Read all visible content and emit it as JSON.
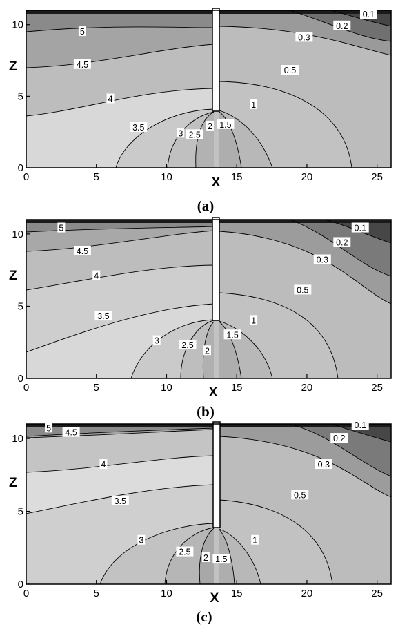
{
  "chart_data": [
    {
      "type": "contour",
      "caption": "(a)",
      "xlabel": "X",
      "ylabel": "Z",
      "xlim": [
        0,
        26
      ],
      "ylim": [
        0,
        11
      ],
      "xticks": [
        "0",
        "5",
        "10",
        "15",
        "20",
        "25"
      ],
      "yticks": [
        "0",
        "5",
        "10"
      ],
      "pipe": {
        "x": 13,
        "z_bottom": 4,
        "z_top": 11
      },
      "contour_labels": [
        {
          "text": "5",
          "x": 4,
          "z": 9.5
        },
        {
          "text": "4.5",
          "x": 4,
          "z": 7.2
        },
        {
          "text": "4",
          "x": 6,
          "z": 4.8
        },
        {
          "text": "3.5",
          "x": 8,
          "z": 2.8
        },
        {
          "text": "3",
          "x": 11,
          "z": 2.4
        },
        {
          "text": "2.5",
          "x": 12,
          "z": 2.3
        },
        {
          "text": "2",
          "x": 13.1,
          "z": 2.9
        },
        {
          "text": "1.5",
          "x": 14.2,
          "z": 3.0
        },
        {
          "text": "1",
          "x": 16.2,
          "z": 4.4
        },
        {
          "text": "0.5",
          "x": 18.8,
          "z": 6.8
        },
        {
          "text": "0.3",
          "x": 19.8,
          "z": 9.1
        },
        {
          "text": "0.2",
          "x": 22.5,
          "z": 9.9
        },
        {
          "text": "0.1",
          "x": 24.4,
          "z": 10.7
        }
      ]
    },
    {
      "type": "contour",
      "caption": "(b)",
      "xlabel": "X",
      "ylabel": "Z",
      "xlim": [
        0,
        26
      ],
      "ylim": [
        0,
        11
      ],
      "xticks": [
        "0",
        "5",
        "10",
        "15",
        "20",
        "25"
      ],
      "yticks": [
        "0",
        "5",
        "10"
      ],
      "pipe": {
        "x": 13,
        "z_bottom": 4,
        "z_top": 11
      },
      "contour_labels": [
        {
          "text": "5",
          "x": 2.5,
          "z": 10.4
        },
        {
          "text": "4.5",
          "x": 4,
          "z": 8.8
        },
        {
          "text": "4",
          "x": 5,
          "z": 7.1
        },
        {
          "text": "3.5",
          "x": 5.5,
          "z": 4.3
        },
        {
          "text": "3",
          "x": 9.3,
          "z": 2.6
        },
        {
          "text": "2.5",
          "x": 11.5,
          "z": 2.3
        },
        {
          "text": "2",
          "x": 12.9,
          "z": 1.9
        },
        {
          "text": "1.5",
          "x": 14.7,
          "z": 3.0
        },
        {
          "text": "1",
          "x": 16.2,
          "z": 4.0
        },
        {
          "text": "0.5",
          "x": 19.7,
          "z": 6.1
        },
        {
          "text": "0.3",
          "x": 21.1,
          "z": 8.2
        },
        {
          "text": "0.2",
          "x": 22.5,
          "z": 9.4
        },
        {
          "text": "0.1",
          "x": 23.8,
          "z": 10.4
        }
      ]
    },
    {
      "type": "contour",
      "caption": "(c)",
      "xlabel": "X",
      "ylabel": "Z",
      "xlim": [
        0,
        26
      ],
      "ylim": [
        0,
        11
      ],
      "xticks": [
        "0",
        "5",
        "10",
        "15",
        "20",
        "25"
      ],
      "yticks": [
        "0",
        "5",
        "10"
      ],
      "pipe": {
        "x": 13,
        "z_bottom": 4,
        "z_top": 11
      },
      "contour_labels": [
        {
          "text": "5",
          "x": 1.6,
          "z": 10.7
        },
        {
          "text": "4.5",
          "x": 3.2,
          "z": 10.4
        },
        {
          "text": "4",
          "x": 5.5,
          "z": 8.2
        },
        {
          "text": "3.5",
          "x": 6.7,
          "z": 5.7
        },
        {
          "text": "3",
          "x": 8.2,
          "z": 3.0
        },
        {
          "text": "2.5",
          "x": 11.3,
          "z": 2.2
        },
        {
          "text": "2",
          "x": 12.8,
          "z": 1.8
        },
        {
          "text": "1.5",
          "x": 13.9,
          "z": 1.7
        },
        {
          "text": "1",
          "x": 16.3,
          "z": 3.0
        },
        {
          "text": "0.5",
          "x": 19.5,
          "z": 6.1
        },
        {
          "text": "0.3",
          "x": 21.2,
          "z": 8.2
        },
        {
          "text": "0.2",
          "x": 22.3,
          "z": 10.0
        },
        {
          "text": "0.1",
          "x": 23.8,
          "z": 10.9
        }
      ]
    }
  ],
  "colors": {
    "band_5plus": "#8a8a8a",
    "band_4_5": "#a4a4a4",
    "band_4": "#bdbdbd",
    "band_3_5": "#d2d2d2",
    "band_3": "#dcdcdc",
    "band_lower_left": "#c8c8c8",
    "band_2_5": "#b9b9b9",
    "band_2": "#aaaaaa",
    "band_1_5": "#b4b4b4",
    "band_1": "#c2c2c2",
    "band_0_5": "#b6b6b6",
    "band_0_3": "#999999",
    "band_0_2": "#6f6f6f",
    "band_0_1": "#444444",
    "top_strip": "#1a1a1a",
    "pipe": "#ffffff",
    "line": "#000000"
  }
}
